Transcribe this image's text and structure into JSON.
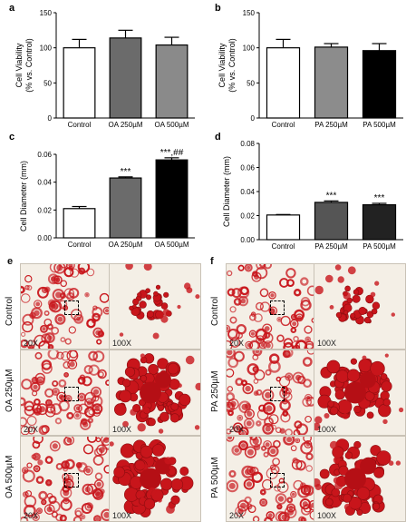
{
  "chart_data": [
    {
      "panel": "a",
      "type": "bar",
      "categories": [
        "Control",
        "OA 250µM",
        "OA 500µM"
      ],
      "values": [
        100,
        114,
        104
      ],
      "errors": [
        12,
        11,
        11
      ],
      "ylabel": "Cell Viability\n(% vs. Control)",
      "ylim": [
        0,
        150
      ],
      "yticks": [
        0,
        50,
        100,
        150
      ],
      "ytick_labels": [
        "0",
        "50",
        "100",
        "150"
      ],
      "colors": [
        "#ffffff",
        "#6b6b6b",
        "#8a8a8a"
      ],
      "annotations": [
        "",
        "",
        ""
      ]
    },
    {
      "panel": "b",
      "type": "bar",
      "categories": [
        "Control",
        "PA 250µM",
        "PA 500µM"
      ],
      "values": [
        100,
        101,
        96
      ],
      "errors": [
        12,
        5,
        10
      ],
      "ylabel": "Cell Viability\n(% vs. Control)",
      "ylim": [
        0,
        150
      ],
      "yticks": [
        0,
        50,
        100,
        150
      ],
      "ytick_labels": [
        "0",
        "50",
        "100",
        "150"
      ],
      "colors": [
        "#ffffff",
        "#8c8c8c",
        "#000000"
      ],
      "annotations": [
        "",
        "",
        ""
      ]
    },
    {
      "panel": "c",
      "type": "bar",
      "categories": [
        "Control",
        "OA 250µM",
        "OA 500µM"
      ],
      "values": [
        0.021,
        0.043,
        0.056
      ],
      "errors": [
        0.0015,
        0.0008,
        0.0015
      ],
      "ylabel": "Cell Diameter (mm)",
      "ylim": [
        0,
        0.06
      ],
      "yticks": [
        0,
        0.02,
        0.04,
        0.06
      ],
      "ytick_labels": [
        "0.00",
        "0.02",
        "0.04",
        "0.06"
      ],
      "colors": [
        "#ffffff",
        "#6b6b6b",
        "#000000"
      ],
      "annotations": [
        "",
        "***",
        "***,##"
      ]
    },
    {
      "panel": "d",
      "type": "bar",
      "categories": [
        "Control",
        "PA 250µM",
        "PA 500µM"
      ],
      "values": [
        0.0205,
        0.031,
        0.029
      ],
      "errors": [
        0.0004,
        0.0012,
        0.0012
      ],
      "ylabel": "Cell Diameter (mm)",
      "ylim": [
        0,
        0.08
      ],
      "yticks": [
        0,
        0.02,
        0.04,
        0.06,
        0.08
      ],
      "ytick_labels": [
        "0.00",
        "0.02",
        "0.04",
        "0.06",
        "0.08"
      ],
      "colors": [
        "#ffffff",
        "#555555",
        "#222222"
      ],
      "annotations": [
        "",
        "***",
        "***"
      ]
    }
  ],
  "micrographs": {
    "e": {
      "label": "e",
      "rows": [
        "Control",
        "OA 250µM",
        "OA 500µM"
      ],
      "low_mag": "20X",
      "high_mag": "100X"
    },
    "f": {
      "label": "f",
      "rows": [
        "Control",
        "PA 250µM",
        "PA 500µM"
      ],
      "low_mag": "20X",
      "high_mag": "100X"
    }
  },
  "colors": {
    "lipid_red": "#c8151b",
    "background": "#f4efe6"
  }
}
